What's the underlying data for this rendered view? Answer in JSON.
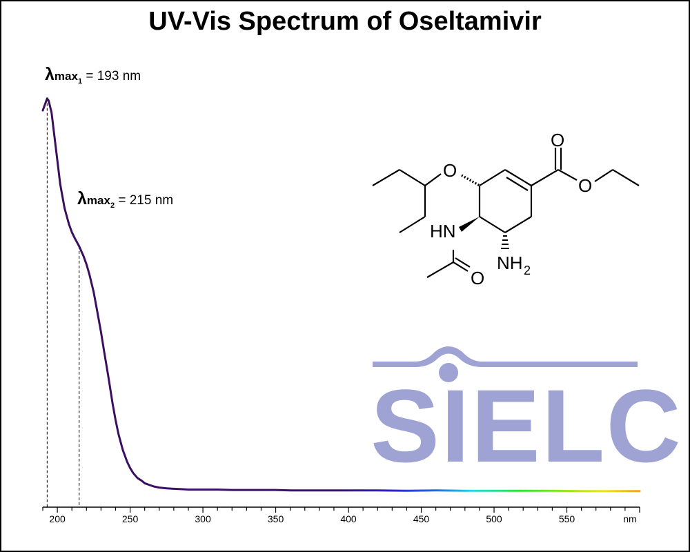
{
  "chart_data": {
    "type": "line",
    "title": "UV-Vis Spectrum of Oseltamivir",
    "xlabel": "nm",
    "ylabel": "",
    "xlim": [
      190,
      600
    ],
    "ylim": [
      0,
      1
    ],
    "x_ticks": [
      "200",
      "250",
      "300",
      "350",
      "400",
      "450",
      "500",
      "550"
    ],
    "x_unit_label": "nm",
    "y_axis_shown": false,
    "grid": false,
    "color_mode": "spectral gradient (purple to orange) along wavelength",
    "series": [
      {
        "x": [
          190,
          191,
          192,
          193,
          194,
          196,
          198,
          200,
          202,
          205,
          208,
          210,
          212,
          215,
          218,
          220,
          222,
          225,
          228,
          230,
          232,
          235,
          238,
          240,
          242,
          245,
          248,
          250,
          252,
          255,
          258,
          260,
          263,
          266,
          270,
          275,
          280,
          285,
          290,
          300,
          310,
          320,
          330,
          340,
          350,
          360,
          370,
          380,
          390,
          400,
          420,
          440,
          460,
          480,
          500,
          520,
          540,
          560,
          580,
          600
        ],
        "y": [
          0.955,
          0.965,
          0.975,
          0.985,
          0.98,
          0.95,
          0.89,
          0.83,
          0.77,
          0.71,
          0.67,
          0.65,
          0.635,
          0.615,
          0.59,
          0.57,
          0.545,
          0.5,
          0.44,
          0.4,
          0.355,
          0.29,
          0.22,
          0.18,
          0.145,
          0.105,
          0.075,
          0.06,
          0.048,
          0.035,
          0.028,
          0.022,
          0.018,
          0.014,
          0.011,
          0.009,
          0.008,
          0.007,
          0.006,
          0.006,
          0.006,
          0.005,
          0.005,
          0.005,
          0.005,
          0.004,
          0.004,
          0.004,
          0.004,
          0.004,
          0.004,
          0.003,
          0.004,
          0.003,
          0.003,
          0.003,
          0.003,
          0.002,
          0.002,
          0.002
        ]
      }
    ],
    "annotations": [
      {
        "symbol": "λ",
        "label_main": "max",
        "label_sub": "1",
        "text": "= 193 nm",
        "x": 193
      },
      {
        "symbol": "λ",
        "label_main": "max",
        "label_sub": "2",
        "text": "= 215 nm",
        "x": 215
      }
    ]
  },
  "molecule": {
    "atoms": {
      "o_ester_top": "O",
      "o_ester": "O",
      "o_ether": "O",
      "hn": "HN",
      "nh2_main": "NH",
      "nh2_sub": "2",
      "o_amide": "O"
    }
  },
  "logo": {
    "text": "SIELC",
    "color": "#9ea3d4"
  }
}
